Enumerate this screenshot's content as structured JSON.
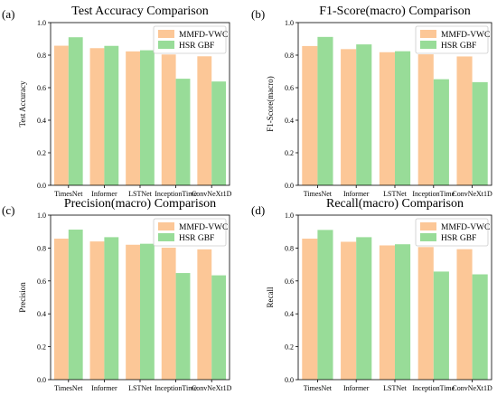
{
  "chart_data": [
    {
      "panel_label": "(a)",
      "type": "bar",
      "title": "Test Accuracy Comparison",
      "xlabel": "",
      "ylabel": "Test Accuracy",
      "categories": [
        "TimesNet",
        "Informer",
        "LSTNet",
        "InceptionTime",
        "ConvNeXt1D"
      ],
      "series": [
        {
          "name": "MMFD-VWC",
          "color": "#fcc797",
          "values": [
            0.858,
            0.843,
            0.823,
            0.804,
            0.793
          ]
        },
        {
          "name": "HSR GBF",
          "color": "#98dc98",
          "values": [
            0.91,
            0.857,
            0.83,
            0.655,
            0.638
          ]
        }
      ],
      "ylim": [
        0,
        1.0
      ],
      "yticks": [
        0.0,
        0.2,
        0.4,
        0.6,
        0.8,
        1.0
      ],
      "yticklabels": [
        "0.0",
        "0.2",
        "0.4",
        "0.6",
        "0.8",
        "1.0"
      ],
      "legend_position": "top-right",
      "grid": false
    },
    {
      "panel_label": "(b)",
      "type": "bar",
      "title": "F1-Score(macro) Comparison",
      "xlabel": "",
      "ylabel": "F1-Score(macro)",
      "categories": [
        "TimesNet",
        "Informer",
        "LSTNet",
        "InceptionTime",
        "ConvNeXt1D"
      ],
      "series": [
        {
          "name": "MMFD-VWC",
          "color": "#fcc797",
          "values": [
            0.856,
            0.837,
            0.818,
            0.805,
            0.792
          ]
        },
        {
          "name": "HSR GBF",
          "color": "#98dc98",
          "values": [
            0.912,
            0.866,
            0.824,
            0.652,
            0.634
          ]
        }
      ],
      "ylim": [
        0,
        1.0
      ],
      "yticks": [
        0.0,
        0.2,
        0.4,
        0.6,
        0.8,
        1.0
      ],
      "yticklabels": [
        "0.0",
        "0.2",
        "0.4",
        "0.6",
        "0.8",
        "1.0"
      ],
      "legend_position": "top-right",
      "grid": false
    },
    {
      "panel_label": "(c)",
      "type": "bar",
      "title": "Precision(macro) Comparison",
      "xlabel": "",
      "ylabel": "Precision",
      "categories": [
        "TimesNet",
        "Informer",
        "LSTNet",
        "InceptionTime",
        "ConvNeXt1D"
      ],
      "series": [
        {
          "name": "MMFD-VWC",
          "color": "#fcc797",
          "values": [
            0.857,
            0.84,
            0.82,
            0.802,
            0.792
          ]
        },
        {
          "name": "HSR GBF",
          "color": "#98dc98",
          "values": [
            0.912,
            0.866,
            0.826,
            0.648,
            0.634
          ]
        }
      ],
      "ylim": [
        0,
        1.0
      ],
      "yticks": [
        0.0,
        0.2,
        0.4,
        0.6,
        0.8,
        1.0
      ],
      "yticklabels": [
        "0.0",
        "0.2",
        "0.4",
        "0.6",
        "0.8",
        "1.0"
      ],
      "legend_position": "top-right",
      "grid": false
    },
    {
      "panel_label": "(d)",
      "type": "bar",
      "title": "Recall(macro) Comparison",
      "xlabel": "",
      "ylabel": "Recall",
      "categories": [
        "TimesNet",
        "Informer",
        "LSTNet",
        "InceptionTime",
        "ConvNeXt1D"
      ],
      "series": [
        {
          "name": "MMFD-VWC",
          "color": "#fcc797",
          "values": [
            0.857,
            0.838,
            0.816,
            0.806,
            0.793
          ]
        },
        {
          "name": "HSR GBF",
          "color": "#98dc98",
          "values": [
            0.91,
            0.866,
            0.823,
            0.657,
            0.64
          ]
        }
      ],
      "ylim": [
        0,
        1.0
      ],
      "yticks": [
        0.0,
        0.2,
        0.4,
        0.6,
        0.8,
        1.0
      ],
      "yticklabels": [
        "0.0",
        "0.2",
        "0.4",
        "0.6",
        "0.8",
        "1.0"
      ],
      "legend_position": "top-right",
      "grid": false
    }
  ]
}
